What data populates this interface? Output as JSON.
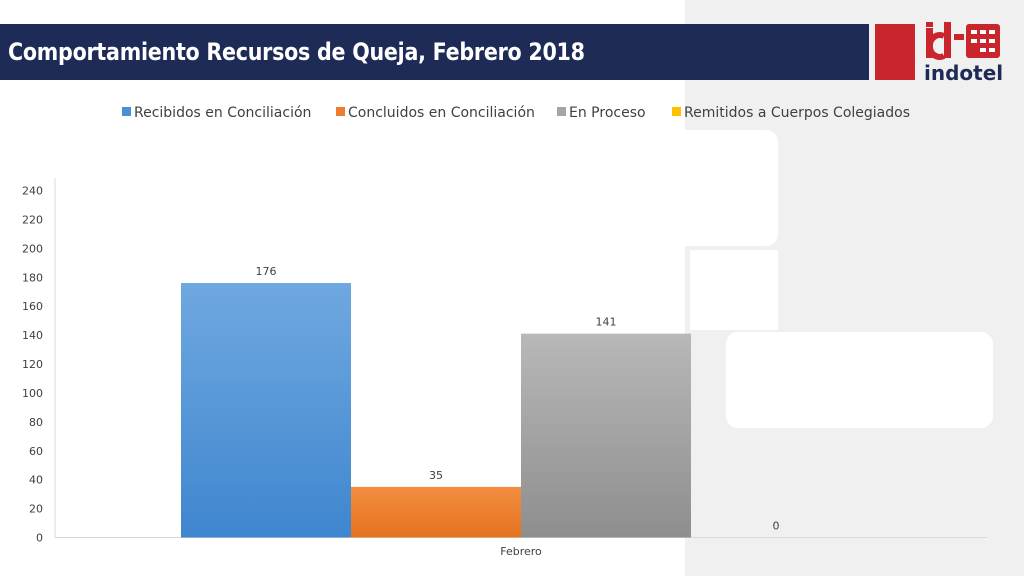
{
  "title": "Comportamiento Recursos de Queja, Febrero 2018",
  "logo": {
    "icon": "indotel-logo",
    "brand_color": "#c8262c",
    "text": "indotel"
  },
  "colors": {
    "title_bar": "#1e2b57",
    "accent_red": "#c8262c"
  },
  "chart_data": {
    "type": "bar",
    "categories": [
      "Febrero"
    ],
    "series": [
      {
        "name": "Recibidos en Conciliación",
        "values": [
          176
        ],
        "color": "#4a90d9"
      },
      {
        "name": "Concluidos en Conciliación",
        "values": [
          35
        ],
        "color": "#ed7d31"
      },
      {
        "name": "En Proceso",
        "values": [
          141
        ],
        "color": "#a5a5a5"
      },
      {
        "name": "Remitidos a Cuerpos Colegiados",
        "values": [
          0
        ],
        "color": "#ffc000"
      }
    ],
    "yticks": [
      "0",
      "20",
      "40",
      "60",
      "80",
      "100",
      "120",
      "140",
      "160",
      "180",
      "200",
      "220",
      "240"
    ],
    "ylim": [
      0,
      240
    ],
    "legend": "top",
    "grid": false
  }
}
